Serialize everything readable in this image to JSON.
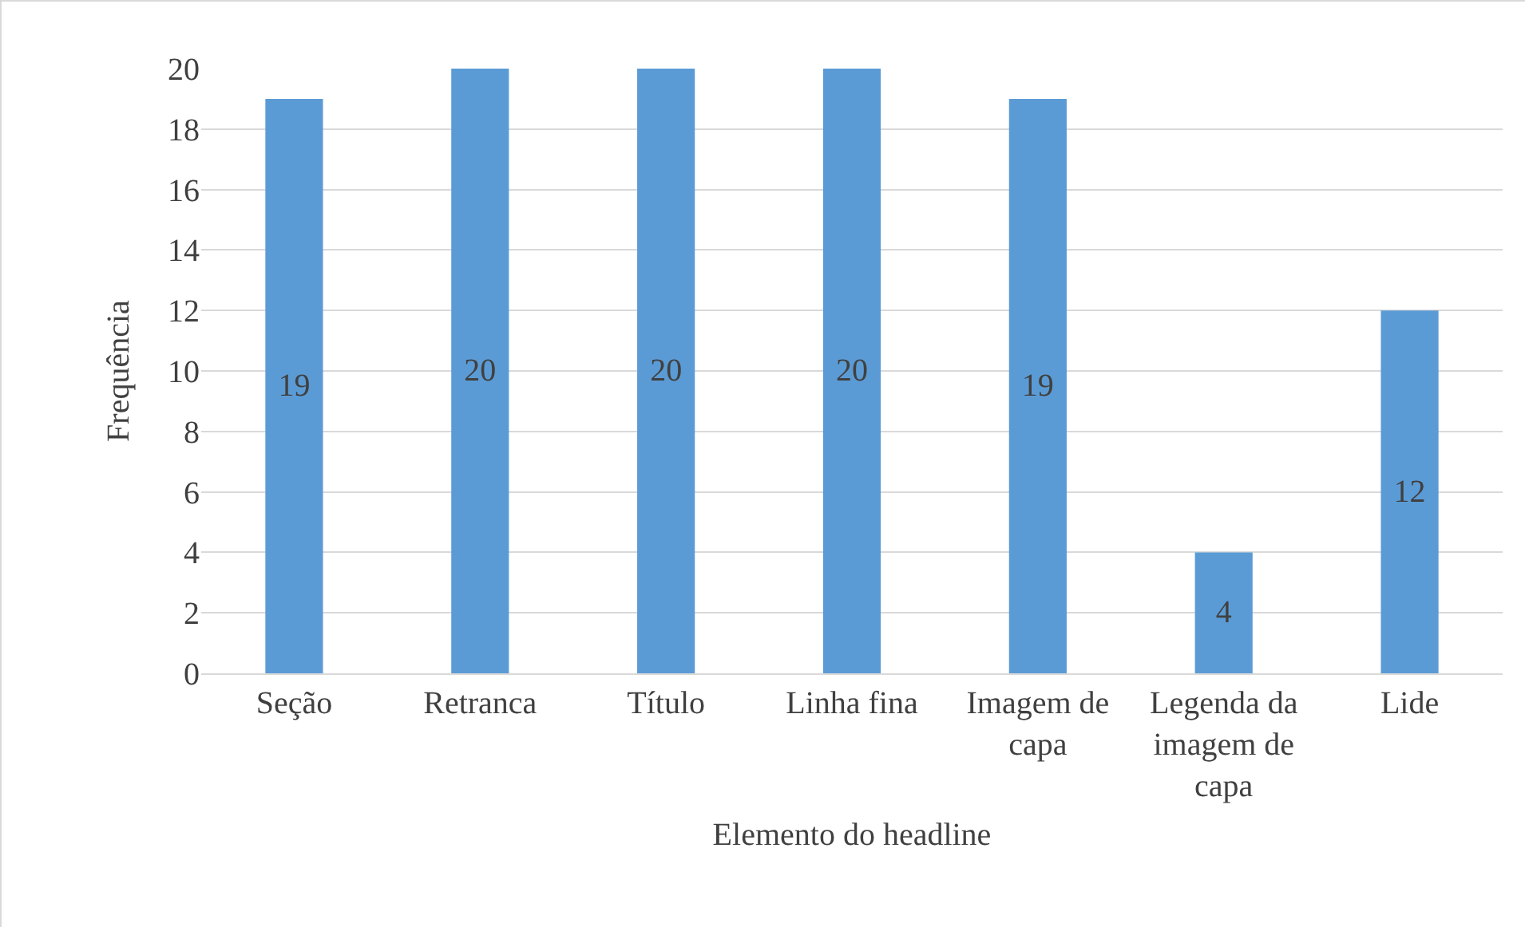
{
  "chart_data": {
    "type": "bar",
    "xlabel": "Elemento do headline",
    "ylabel": "Frequência",
    "categories": [
      "Seção",
      "Retranca",
      "Título",
      "Linha fina",
      "Imagem de capa",
      "Legenda da imagem de capa",
      "Lide"
    ],
    "values": [
      19,
      20,
      20,
      20,
      19,
      4,
      12
    ],
    "color": "#5b9bd5",
    "ylim": [
      0,
      20
    ],
    "yticks": [
      0,
      2,
      4,
      6,
      8,
      10,
      12,
      14,
      16,
      18,
      20
    ],
    "grid": "y",
    "data_labels": true
  }
}
